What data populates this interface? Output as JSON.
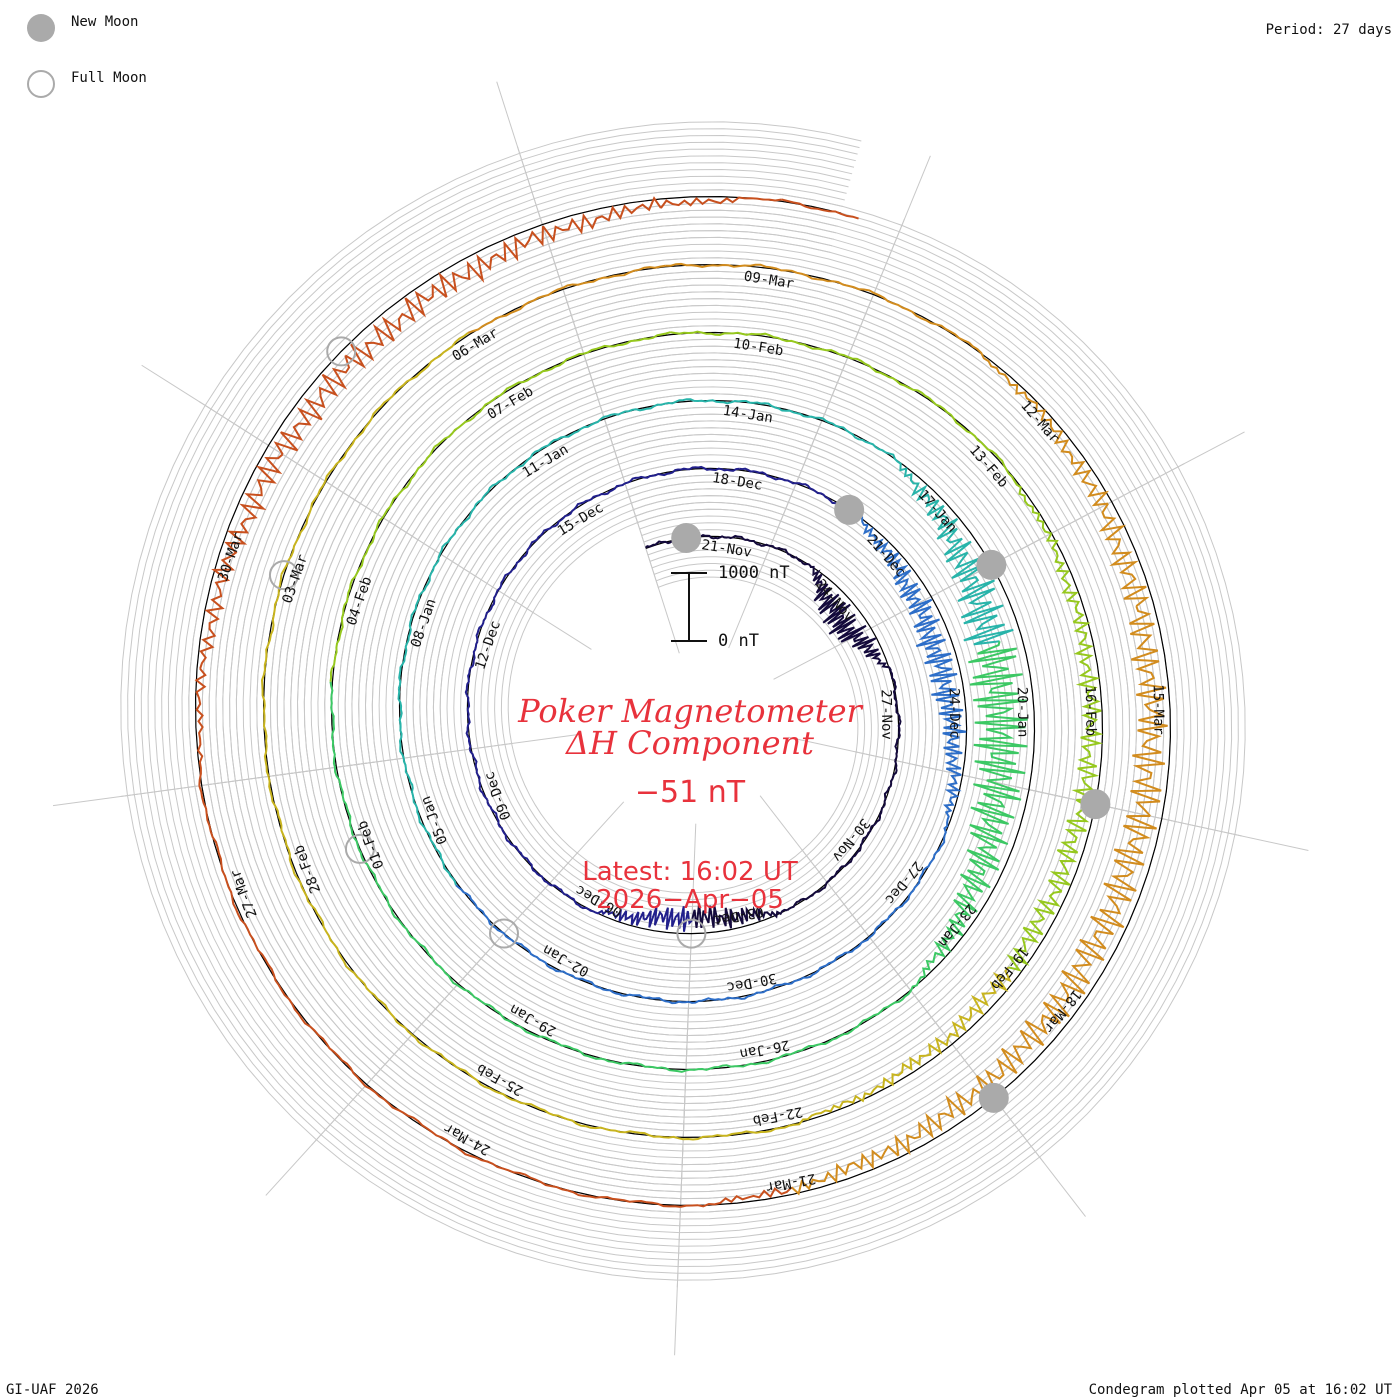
{
  "legend": {
    "new_moon_label": "New Moon",
    "full_moon_label": "Full Moon"
  },
  "period_label": "Period: 27 days",
  "credit": "GI-UAF 2026",
  "plotted_label": "Condegram plotted Apr 05 at 16:02 UT",
  "title": {
    "line1": "Poker Magnetometer",
    "line2": "ΔH Component"
  },
  "current_value": "−51 nT",
  "latest": {
    "time_label": "Latest: 16:02 UT",
    "date_label": "2026−Apr−05"
  },
  "scale_bar": {
    "top_label": "1000 nT",
    "bottom_label": "0 nT"
  },
  "chart_data": {
    "type": "line",
    "form": "spiral condegram",
    "period_days": 27,
    "component": "ΔH",
    "units": "nT",
    "scale_bar_nT": 1000,
    "start_date": "2025-11-19",
    "end_date": "2026-04-05",
    "color_scale": [
      "#140a3c",
      "#22208c",
      "#2d6ec8",
      "#28b4aa",
      "#3cc864",
      "#96c81e",
      "#c8b41e",
      "#d28c1e",
      "#c8501e",
      "#b40000"
    ],
    "date_labels": [
      "21-Nov",
      "24-Nov",
      "27-Nov",
      "30-Nov",
      "03-Dec",
      "06-Dec",
      "09-Dec",
      "12-Dec",
      "15-Dec",
      "18-Dec",
      "21-Dec",
      "24-Dec",
      "27-Dec",
      "30-Dec",
      "02-Jan",
      "05-Jan",
      "08-Jan",
      "11-Jan",
      "14-Jan",
      "17-Jan",
      "20-Jan",
      "23-Jan",
      "26-Jan",
      "29-Jan",
      "01-Feb",
      "04-Feb",
      "07-Feb",
      "10-Feb",
      "13-Feb",
      "16-Feb",
      "19-Feb",
      "22-Feb",
      "25-Feb",
      "28-Feb",
      "03-Mar",
      "06-Mar",
      "09-Mar",
      "12-Mar",
      "15-Mar",
      "18-Mar",
      "21-Mar",
      "24-Mar",
      "27-Mar",
      "30-Mar"
    ],
    "new_moon_dates": [
      "2025-11-20",
      "2025-12-20",
      "2026-01-18",
      "2026-02-17",
      "2026-03-19"
    ],
    "full_moon_dates": [
      "2025-12-04",
      "2026-01-03",
      "2026-02-01",
      "2026-03-03",
      "2026-04-01"
    ],
    "disturbed_intervals": [
      {
        "start": "2025-11-23",
        "end": "2025-11-26",
        "peak_nT": -800
      },
      {
        "start": "2025-12-02",
        "end": "2025-12-06",
        "peak_nT": -600
      },
      {
        "start": "2025-12-20",
        "end": "2025-12-26",
        "peak_nT": -700
      },
      {
        "start": "2026-01-16",
        "end": "2026-01-24",
        "peak_nT": -1300
      },
      {
        "start": "2026-02-13",
        "end": "2026-02-22",
        "peak_nT": -500
      },
      {
        "start": "2026-03-11",
        "end": "2026-03-22",
        "peak_nT": -800
      },
      {
        "start": "2026-03-28",
        "end": "2026-04-05",
        "peak_nT": -600
      }
    ],
    "latest_value_nT": -51,
    "grid": true
  }
}
